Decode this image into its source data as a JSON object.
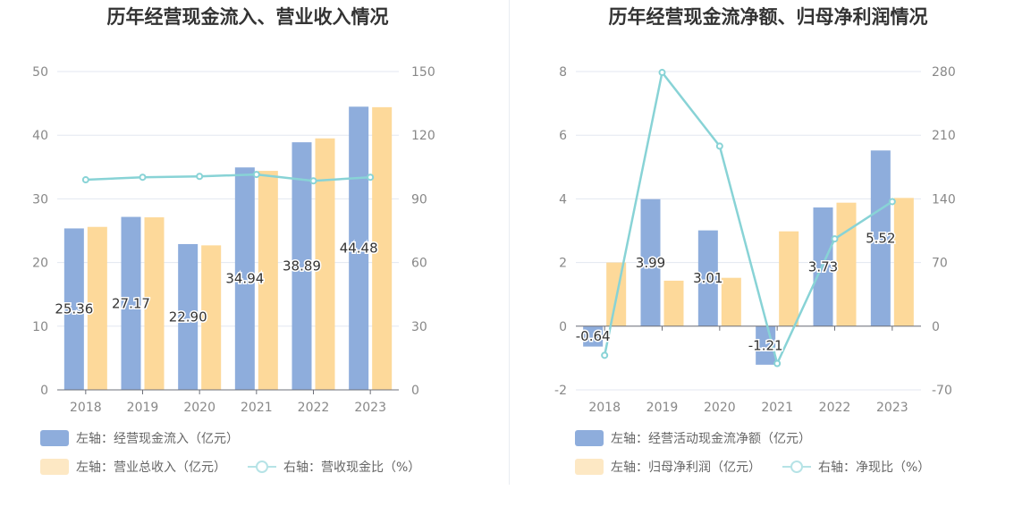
{
  "chart_data": [
    {
      "type": "bar",
      "title": "历年经营现金流入、营业收入情况",
      "categories": [
        "2018",
        "2019",
        "2020",
        "2021",
        "2022",
        "2023"
      ],
      "y_left": {
        "ticks": [
          0,
          10,
          20,
          30,
          40,
          50
        ],
        "range": [
          0,
          50
        ]
      },
      "y_right": {
        "ticks": [
          0,
          30,
          60,
          90,
          120,
          150
        ],
        "range": [
          0,
          150
        ]
      },
      "series": [
        {
          "name": "左轴：经营现金流入（亿元）",
          "kind": "bar",
          "axis": "left",
          "color": "#8eaddc",
          "values": [
            25.36,
            27.17,
            22.9,
            34.94,
            38.89,
            44.48
          ],
          "labels": [
            "25.36",
            "27.17",
            "22.90",
            "34.94",
            "38.89",
            "44.48"
          ]
        },
        {
          "name": "左轴：营业总收入（亿元）",
          "kind": "bar",
          "axis": "left",
          "color": "#fdd99a",
          "values": [
            25.6,
            27.1,
            22.7,
            34.4,
            39.5,
            44.4
          ]
        },
        {
          "name": "右轴：营收现金比（%）",
          "kind": "line",
          "axis": "right",
          "color": "#88d3d6",
          "values": [
            99.0,
            100.2,
            100.6,
            101.5,
            98.5,
            100.2
          ]
        }
      ],
      "legend_position": "bottom-left",
      "grid": true
    },
    {
      "type": "bar",
      "title": "历年经营现金流净额、归母净利润情况",
      "categories": [
        "2018",
        "2019",
        "2020",
        "2021",
        "2022",
        "2023"
      ],
      "y_left": {
        "ticks": [
          -2,
          0,
          2,
          4,
          6,
          8
        ],
        "range": [
          -2,
          8
        ]
      },
      "y_right": {
        "ticks": [
          -70,
          0,
          70,
          140,
          210,
          280
        ],
        "range": [
          -70,
          280
        ]
      },
      "series": [
        {
          "name": "左轴：经营活动现金流净额（亿元）",
          "kind": "bar",
          "axis": "left",
          "color": "#8eaddc",
          "values": [
            -0.64,
            3.99,
            3.01,
            -1.21,
            3.73,
            5.52
          ],
          "labels": [
            "-0.64",
            "3.99",
            "3.01",
            "-1.21",
            "3.73",
            "5.52"
          ]
        },
        {
          "name": "左轴：归母净利润（亿元）",
          "kind": "bar",
          "axis": "left",
          "color": "#fdd99a",
          "values": [
            2.0,
            1.43,
            1.52,
            2.98,
            3.88,
            4.03
          ]
        },
        {
          "name": "右轴：净现比（%）",
          "kind": "line",
          "axis": "right",
          "color": "#88d3d6",
          "values": [
            -32,
            279,
            198,
            -41,
            96,
            137
          ]
        }
      ],
      "legend_position": "bottom-left",
      "grid": true
    }
  ]
}
